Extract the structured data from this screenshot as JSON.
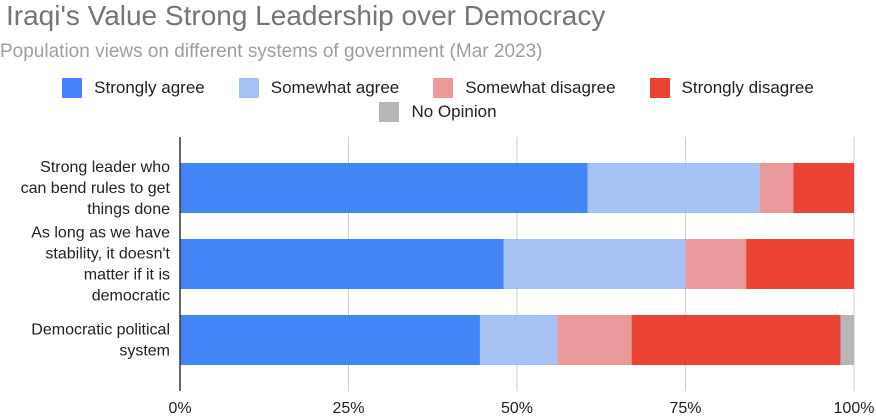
{
  "chart_data": {
    "type": "bar",
    "orientation": "horizontal",
    "stacked": true,
    "normalized": true,
    "title": "Iraqi's Value Strong Leadership over Democracy",
    "subtitle": "Population views on different systems of government (Mar 2023)",
    "categories": [
      [
        "Strong leader who",
        "can bend rules to get",
        "things done"
      ],
      [
        "As long as we have",
        "stability, it doesn't",
        "matter if it is",
        "democratic"
      ],
      [
        "Democratic political",
        "system"
      ]
    ],
    "series": [
      {
        "name": "Strongly agree",
        "color": "#4285f4",
        "values": [
          60.5,
          48,
          44.5
        ]
      },
      {
        "name": "Somewhat agree",
        "color": "#a4c2f4",
        "values": [
          25.5,
          27,
          11.5
        ]
      },
      {
        "name": "Somewhat disagree",
        "color": "#ea9999",
        "values": [
          5,
          9,
          11
        ]
      },
      {
        "name": "Strongly disagree",
        "color": "#ea4335",
        "values": [
          9,
          16,
          31
        ]
      },
      {
        "name": "No Opinion",
        "color": "#b7b7b7",
        "values": [
          0,
          0,
          2
        ]
      }
    ],
    "xlim": [
      0,
      100
    ],
    "xticks": [
      "0%",
      "25%",
      "50%",
      "75%",
      "100%"
    ],
    "grid": true,
    "legend_position": "top"
  }
}
